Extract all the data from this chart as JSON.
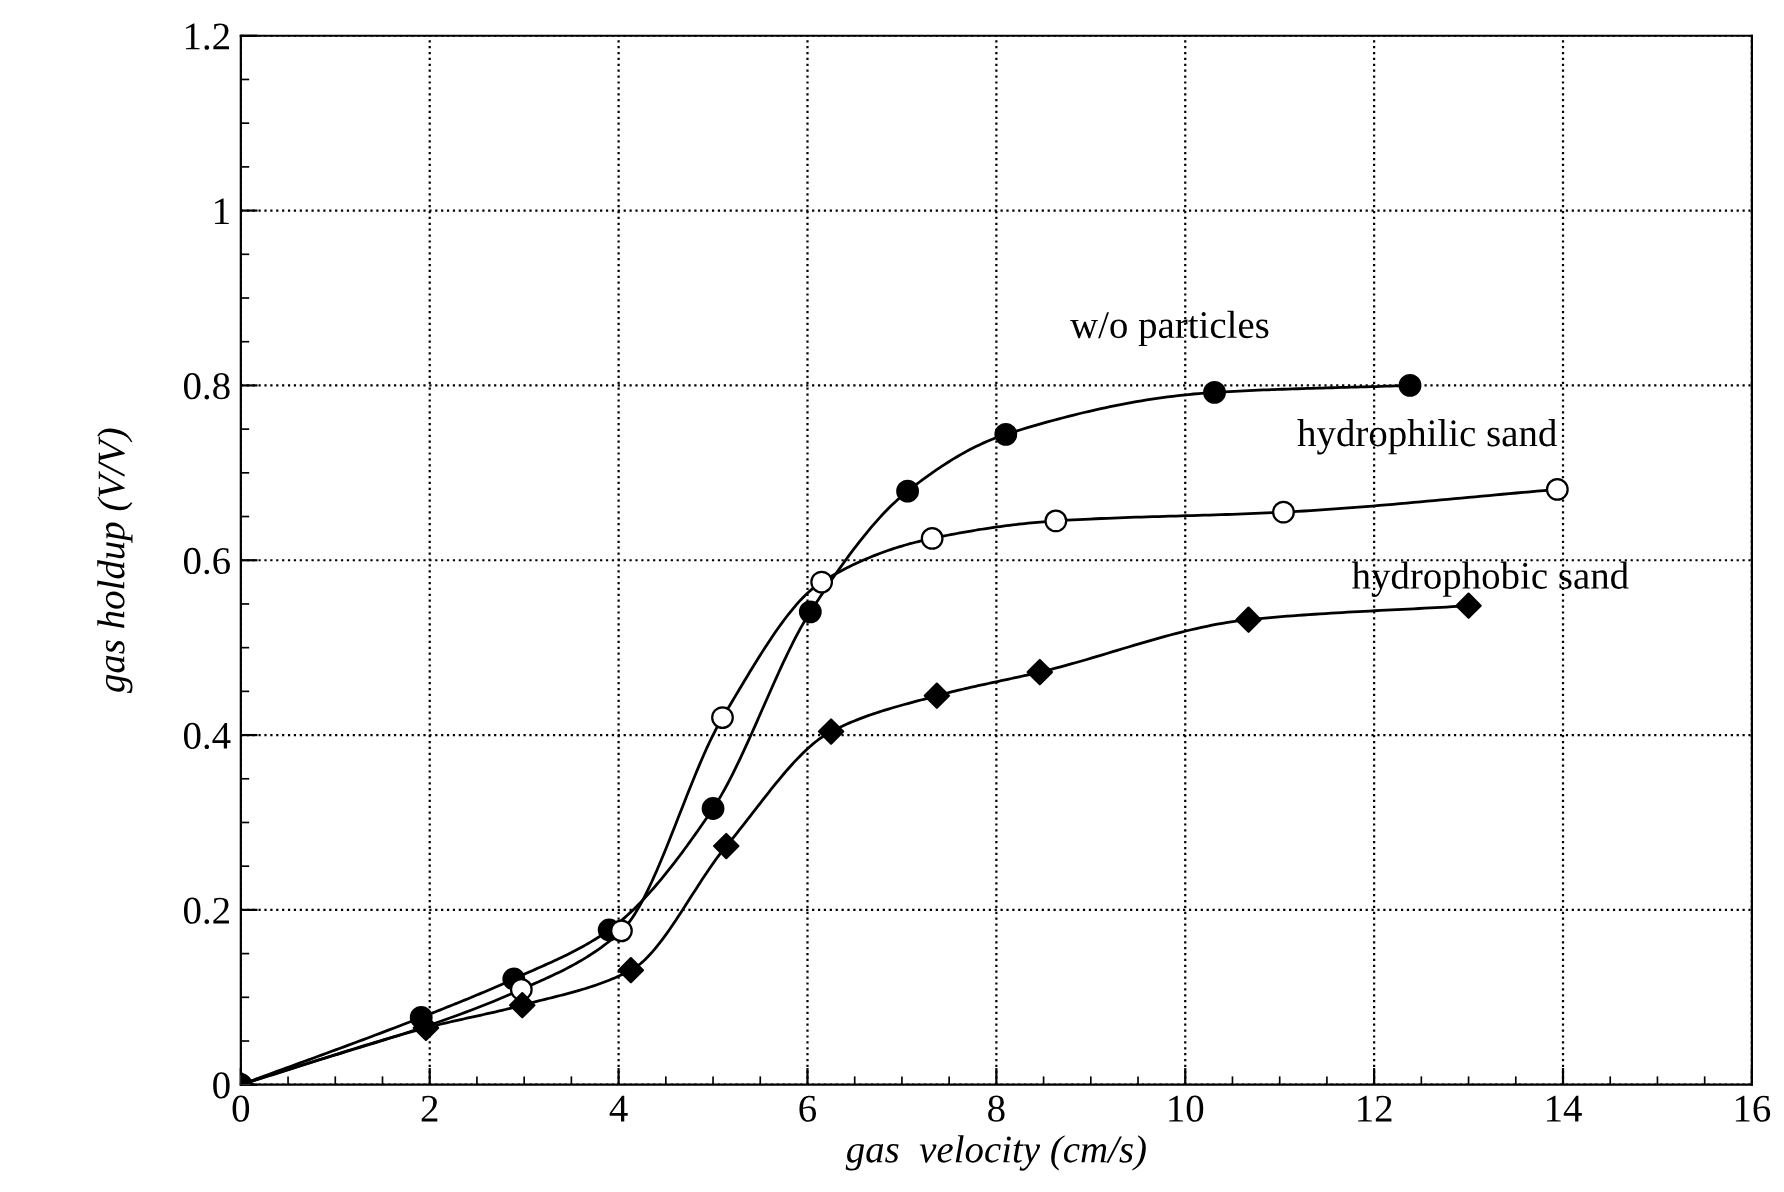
{
  "chart_data": {
    "type": "line",
    "xlabel": "gas  velocity (cm/s)",
    "ylabel": "gas holdup (V/V)",
    "xlim": [
      0,
      16
    ],
    "xticks": [
      0,
      2,
      4,
      6,
      8,
      10,
      12,
      14,
      16
    ],
    "ylim": [
      0,
      1.2
    ],
    "yticks": [
      0,
      0.2,
      0.4,
      0.6,
      0.8,
      1,
      1.2
    ],
    "grid": true,
    "legend": false,
    "line_style": "solid",
    "series": [
      {
        "name": "w/o particles",
        "color": "#000000",
        "marker": "circle",
        "x": [
          0,
          1.91,
          2.89,
          3.9,
          5.0,
          6.03,
          7.06,
          8.1,
          10.31,
          12.38
        ],
        "values": [
          0,
          0.077,
          0.121,
          0.177,
          0.316,
          0.541,
          0.679,
          0.744,
          0.792,
          0.8
        ]
      },
      {
        "name": "hydrophilic sand",
        "color": "#ffffff",
        "marker": "circle",
        "x": [
          0,
          1.94,
          2.97,
          4.03,
          5.1,
          6.15,
          7.32,
          8.63,
          11.04,
          13.94
        ],
        "values": [
          0,
          null,
          0.109,
          0.176,
          0.42,
          0.575,
          0.625,
          0.645,
          0.655,
          0.681
        ]
      },
      {
        "name": "hydrophobic sand",
        "color": "#000000",
        "marker": "diamond",
        "x": [
          0,
          1.96,
          2.98,
          4.13,
          5.14,
          6.25,
          7.37,
          8.46,
          10.67,
          13.0
        ],
        "values": [
          0,
          0.065,
          0.091,
          0.131,
          0.273,
          0.404,
          0.445,
          0.472,
          0.532,
          0.548
        ]
      }
    ]
  }
}
